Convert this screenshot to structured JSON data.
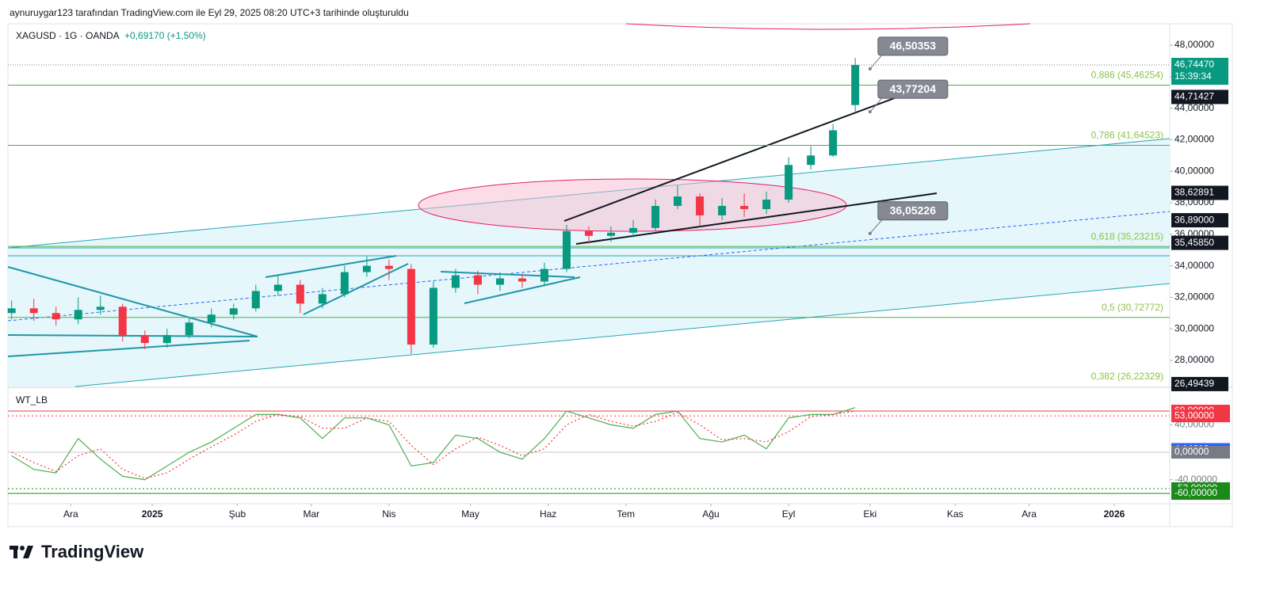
{
  "header": "aynuruygar123 tarafından TradingView.com ile Eyl 29, 2025 08:20 UTC+3 tarihinde oluşturuldu",
  "logo": "TradingView",
  "chart_data": {
    "type": "candlestick",
    "title": "XAGUSD · 1G · OANDA",
    "change": "+0,69170 (+1,50%)",
    "up_color": "#089981",
    "down_color": "#f23645",
    "x": [
      -16,
      -10,
      -4,
      2,
      8,
      14,
      20,
      26,
      32,
      38,
      44,
      50,
      56,
      62,
      68,
      74,
      80,
      86,
      92,
      98,
      104,
      110,
      116,
      122,
      128,
      134,
      140,
      146,
      152,
      158,
      164,
      170,
      176,
      182,
      188,
      194,
      200,
      206,
      212
    ],
    "open": [
      31.0,
      31.3,
      31.0,
      30.6,
      31.2,
      31.4,
      29.6,
      29.1,
      29.6,
      30.4,
      30.9,
      31.3,
      32.4,
      32.8,
      31.6,
      32.2,
      33.6,
      34.0,
      33.8,
      29.0,
      32.6,
      33.4,
      32.8,
      33.2,
      33.0,
      33.8,
      36.2,
      35.9,
      36.1,
      36.4,
      37.8,
      38.4,
      37.2,
      37.8,
      37.6,
      38.2,
      40.4,
      41.0,
      44.2
    ],
    "high": [
      31.8,
      31.9,
      31.4,
      32.0,
      32.1,
      31.6,
      29.9,
      30.0,
      30.7,
      31.3,
      31.6,
      32.8,
      33.4,
      33.1,
      32.6,
      34.0,
      34.6,
      34.4,
      34.1,
      33.0,
      33.8,
      33.7,
      33.6,
      33.5,
      34.2,
      36.6,
      36.5,
      36.5,
      36.9,
      38.2,
      39.1,
      38.6,
      38.3,
      38.6,
      38.7,
      40.9,
      41.6,
      43.0,
      47.2
    ],
    "low": [
      30.6,
      30.5,
      30.2,
      30.3,
      30.9,
      29.2,
      28.7,
      28.8,
      29.4,
      30.1,
      30.6,
      31.1,
      32.1,
      31.0,
      31.3,
      32.0,
      33.3,
      33.1,
      28.4,
      28.8,
      32.3,
      32.2,
      32.4,
      32.6,
      32.7,
      33.6,
      35.4,
      35.5,
      35.8,
      36.2,
      37.6,
      36.5,
      36.9,
      37.1,
      37.3,
      38.0,
      40.1,
      40.9,
      43.8
    ],
    "close": [
      31.3,
      31.0,
      30.6,
      31.2,
      31.4,
      29.6,
      29.1,
      29.6,
      30.4,
      30.9,
      31.3,
      32.4,
      32.8,
      31.6,
      32.2,
      33.6,
      34.0,
      33.8,
      29.0,
      32.6,
      33.4,
      32.8,
      33.2,
      33.0,
      33.8,
      36.2,
      35.9,
      36.1,
      36.4,
      37.8,
      38.4,
      37.2,
      37.8,
      37.6,
      38.2,
      40.4,
      41.0,
      42.6,
      46.7447
    ],
    "xlim": [
      -17,
      297
    ],
    "xticks": [
      {
        "value": 0,
        "label": "Ara"
      },
      {
        "value": 22,
        "label": "2025"
      },
      {
        "value": 45,
        "label": "Şub"
      },
      {
        "value": 65,
        "label": "Mar"
      },
      {
        "value": 86,
        "label": "Nis"
      },
      {
        "value": 108,
        "label": "May"
      },
      {
        "value": 129,
        "label": "Haz"
      },
      {
        "value": 150,
        "label": "Tem"
      },
      {
        "value": 173,
        "label": "Ağu"
      },
      {
        "value": 194,
        "label": "Eyl"
      },
      {
        "value": 216,
        "label": "Eki"
      },
      {
        "value": 239,
        "label": "Kas"
      },
      {
        "value": 259,
        "label": "Ara"
      },
      {
        "value": 282,
        "label": "2026"
      }
    ],
    "ylim": [
      26.34,
      49.36
    ],
    "yticks": [
      {
        "value": 28,
        "label": "28,00000"
      },
      {
        "value": 30,
        "label": "30,00000"
      },
      {
        "value": 32,
        "label": "32,00000"
      },
      {
        "value": 34,
        "label": "34,00000"
      },
      {
        "value": 36,
        "label": "36,00000"
      },
      {
        "value": 38,
        "label": "38,00000"
      },
      {
        "value": 40,
        "label": "40,00000"
      },
      {
        "value": 42,
        "label": "42,00000"
      },
      {
        "value": 44,
        "label": "44,00000"
      },
      {
        "value": 46,
        "label": "46,00000"
      },
      {
        "value": 48,
        "label": "48,00000"
      }
    ],
    "fib_levels": [
      {
        "value": 45.46254,
        "label": "0,886 (45,46254)"
      },
      {
        "value": 41.64523,
        "label": "0,786 (41,64523)"
      },
      {
        "value": 35.23215,
        "label": "0,618 (35,23215)"
      },
      {
        "value": 30.72772,
        "label": "0,5 (30,72772)"
      },
      {
        "value": 26.22329,
        "label": "0,382 (26,22329)"
      }
    ],
    "last_time": "15:39:34",
    "price_labels": [
      {
        "value": 46.7447,
        "label": "46,74470",
        "color": "#089981"
      },
      {
        "value": 44.71427,
        "label": "44,71427",
        "color": "#131722"
      },
      {
        "value": 38.62891,
        "label": "38,62891",
        "color": "#131722"
      },
      {
        "value": 36.89,
        "label": "36,89000",
        "color": "#131722"
      },
      {
        "value": 35.4585,
        "label": "35,45850",
        "color": "#131722"
      },
      {
        "value": 26.49439,
        "label": "26,49439",
        "color": "#131722"
      }
    ],
    "callouts": [
      {
        "value": 46.50353,
        "label": "46,50353"
      },
      {
        "value": 43.77204,
        "label": "43,77204"
      },
      {
        "value": 36.05226,
        "label": "36,05226"
      }
    ],
    "indicator": {
      "name": "WT_LB",
      "ylim": [
        -73.8,
        93.5
      ],
      "yticks": [
        {
          "value": 40,
          "label": "40,00000"
        },
        {
          "value": -40,
          "label": "-40,00000"
        }
      ],
      "levels": [
        {
          "value": 60,
          "label": "60,00000",
          "color": "#f23645"
        },
        {
          "value": 53,
          "label": "53,00000",
          "color": "#f23645"
        },
        {
          "value": 4.1461,
          "label": "4,14610",
          "color": "#2962ff"
        },
        {
          "value": 0,
          "label": "0,00000",
          "color": "#787b86"
        },
        {
          "value": -53,
          "label": "-53,00000",
          "color": "#1b8a1b"
        },
        {
          "value": -60,
          "label": "-60,00000",
          "color": "#1b8a1b"
        }
      ],
      "series": [
        {
          "color": "#4caf50",
          "values": [
            -5,
            -25,
            -30,
            20,
            -10,
            -35,
            -40,
            -20,
            0,
            15,
            35,
            55,
            55,
            50,
            20,
            50,
            50,
            40,
            -20,
            -15,
            25,
            20,
            0,
            -10,
            20,
            60,
            50,
            40,
            35,
            55,
            60,
            20,
            15,
            25,
            5,
            50,
            55,
            55,
            65
          ]
        },
        {
          "color": "#f23645",
          "values": [
            0,
            -15,
            -28,
            -5,
            5,
            -25,
            -38,
            -30,
            -10,
            8,
            25,
            45,
            55,
            52,
            35,
            35,
            50,
            45,
            10,
            -18,
            5,
            22,
            10,
            -5,
            5,
            40,
            55,
            45,
            38,
            45,
            58,
            40,
            18,
            20,
            15,
            30,
            52,
            55,
            60
          ]
        }
      ]
    }
  }
}
